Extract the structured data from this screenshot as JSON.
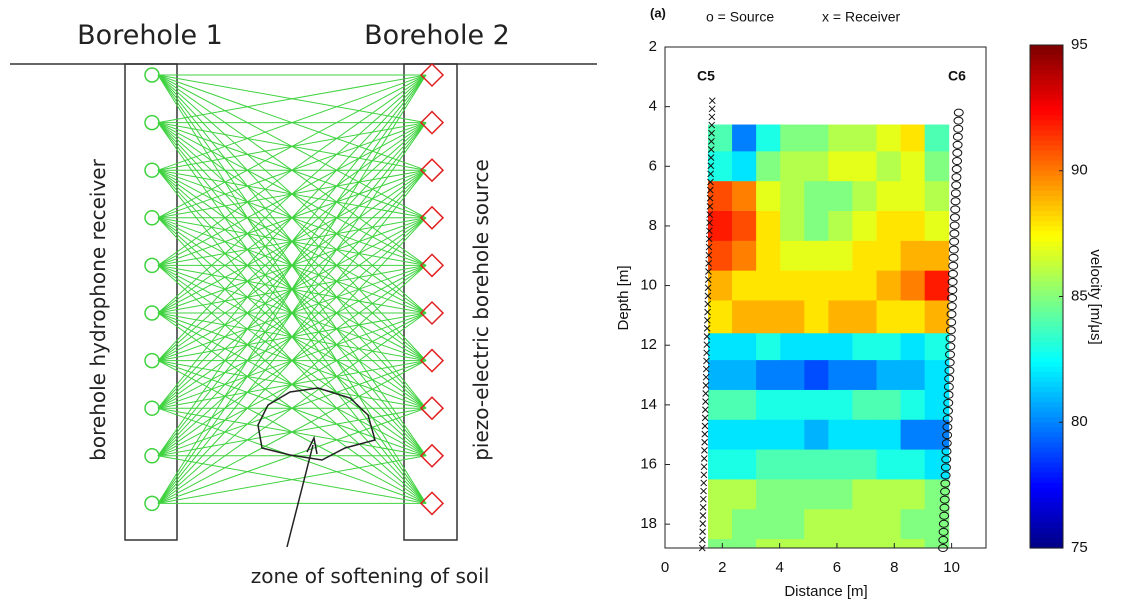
{
  "diagram": {
    "borehole_1": "Borehole 1",
    "borehole_2": "Borehole 2",
    "receiver_label": "borehole hydrophone receiver",
    "source_label": "piezo-electric borehole source",
    "zone_label": "zone of softening of soil"
  },
  "chart_data": {
    "type": "heatmap",
    "panel_label": "(a)",
    "legend": [
      "o = Source",
      "x = Receiver"
    ],
    "annotations": [
      "C5",
      "C6"
    ],
    "xlabel": "Distance [m]",
    "ylabel": "Depth [m]",
    "xlim": [
      0,
      11.2
    ],
    "xticks": [
      0,
      2,
      4,
      6,
      8,
      10
    ],
    "ylim": [
      2,
      18.8
    ],
    "y_reversed": true,
    "yticks": [
      2,
      4,
      6,
      8,
      10,
      12,
      14,
      16,
      18
    ],
    "colormap": "jet",
    "xbins": [
      1.5,
      2.34,
      3.18,
      4.02,
      4.86,
      5.7,
      6.54,
      7.38,
      8.22,
      9.06,
      9.9
    ],
    "ybins": [
      4.6,
      5.5,
      6.5,
      7.5,
      8.5,
      9.5,
      10.5,
      11.6,
      12.5,
      13.5,
      14.5,
      15.5,
      16.5,
      17.5,
      18.5,
      18.8
    ],
    "values": [
      [
        84,
        80,
        83,
        85,
        85,
        86,
        86,
        87,
        88,
        84
      ],
      [
        83,
        82,
        85,
        86,
        86,
        87,
        87,
        86,
        87,
        85
      ],
      [
        91,
        90,
        87,
        86,
        85,
        85,
        86,
        87,
        87,
        86
      ],
      [
        92,
        91,
        88,
        86,
        85,
        86,
        87,
        88,
        88,
        87
      ],
      [
        91,
        90,
        88,
        87,
        87,
        87,
        88,
        88,
        89,
        89
      ],
      [
        89,
        88,
        88,
        88,
        88,
        88,
        88,
        89,
        90,
        92
      ],
      [
        88,
        89,
        89,
        89,
        88,
        89,
        89,
        88,
        88,
        89
      ],
      [
        82,
        82,
        83,
        82,
        82,
        82,
        83,
        83,
        82,
        83
      ],
      [
        81,
        81,
        80,
        80,
        79,
        80,
        80,
        81,
        81,
        82
      ],
      [
        84,
        84,
        83,
        83,
        83,
        83,
        84,
        84,
        83,
        82
      ],
      [
        82,
        82,
        82,
        82,
        81,
        82,
        82,
        82,
        80,
        80
      ],
      [
        83,
        83,
        84,
        84,
        84,
        84,
        84,
        83,
        83,
        82
      ],
      [
        86,
        86,
        85,
        85,
        85,
        85,
        86,
        86,
        86,
        85
      ],
      [
        86,
        85,
        85,
        85,
        86,
        86,
        86,
        86,
        85,
        85
      ],
      [
        85,
        85,
        86,
        86,
        86,
        86,
        86,
        86,
        86,
        85
      ]
    ],
    "receivers": {
      "x": [
        1.65,
        1.3
      ],
      "y": [
        3.8,
        18.8
      ]
    },
    "sources": {
      "x": [
        10.25,
        9.7
      ],
      "y": [
        4.2,
        18.8
      ]
    },
    "colorbar": {
      "label": "velocity [m/μs]",
      "lim": [
        75,
        95
      ],
      "ticks": [
        75,
        80,
        85,
        90,
        95
      ]
    }
  }
}
